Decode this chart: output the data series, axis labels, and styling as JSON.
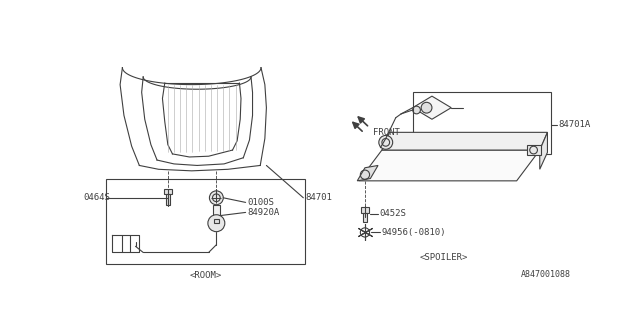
{
  "bg": "#ffffff",
  "lc": "#404040",
  "fs": 6.5,
  "lw": 0.8,
  "footnote": "A847001088",
  "room_label": "<ROOM>",
  "spoiler_label": "<SPOILER>",
  "front_label": "FRONT"
}
